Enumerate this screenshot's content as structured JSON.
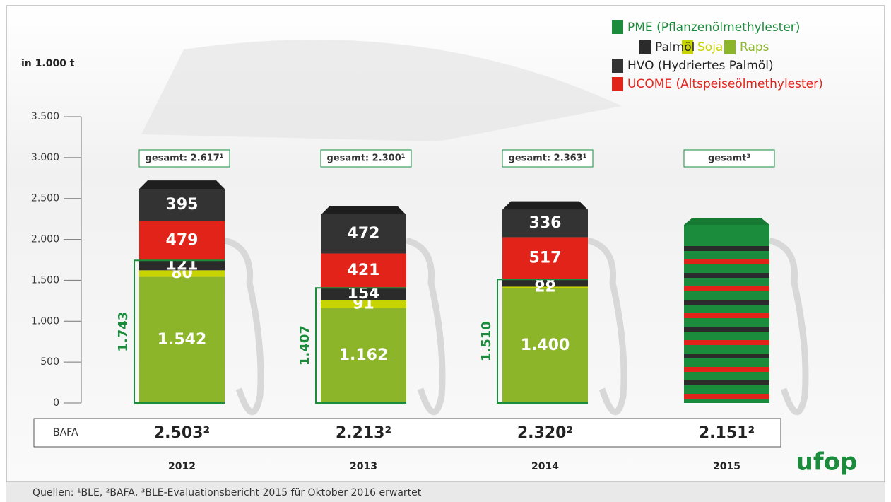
{
  "chart_data": {
    "type": "bar",
    "stacked": true,
    "y_label": "in 1.000 t",
    "categories": [
      "2012",
      "2013",
      "2014",
      "2015"
    ],
    "series": [
      {
        "name": "Raps",
        "color": "#8cb52a",
        "values": [
          1542,
          1162,
          1400,
          null
        ],
        "value_labels": [
          "1.542",
          "1.162",
          "1.400",
          null
        ]
      },
      {
        "name": "Soja",
        "color": "#c8d400",
        "values": [
          80,
          91,
          22,
          null
        ]
      },
      {
        "name": "Palmöl",
        "color": "#2b2b2b",
        "values": [
          121,
          154,
          88,
          null
        ]
      },
      {
        "name": "UCOME (Altspeiseölmethylester)",
        "color": "#e2231a",
        "values": [
          479,
          421,
          517,
          null
        ]
      },
      {
        "name": "HVO (Hydriertes Palmöl)",
        "color": "#333333",
        "values": [
          395,
          472,
          336,
          null
        ]
      }
    ],
    "legend_group": "PME (Pflanzenölmethylester)",
    "legend_group_color": "#1a8c3c",
    "ylim": [
      0,
      3500
    ],
    "yticks": [
      0,
      500,
      {
        "value": 1000,
        "label": "1.000"
      },
      {
        "value": 1500,
        "label": "1.500"
      },
      {
        "value": 2000,
        "label": "2.000"
      },
      {
        "value": 2500,
        "label": "2.500"
      },
      {
        "value": 3000,
        "label": "3.000"
      },
      {
        "value": 3500,
        "label": "3.500"
      }
    ],
    "totals": {
      "values": [
        2617,
        2300,
        2363,
        null
      ],
      "value_labels": [
        "gesamt: 2.617¹",
        "gesamt: 2.300¹",
        "gesamt: 2.363¹",
        "gesamt³"
      ]
    },
    "pme_totals": {
      "values": [
        1743,
        1407,
        1510,
        null
      ],
      "value_labels": [
        "1.743",
        "1.407",
        "1.510",
        null
      ]
    },
    "bafa": {
      "label": "BAFA",
      "values": [
        2503,
        2213,
        2320,
        2151
      ],
      "value_labels": [
        "2.503²",
        "2.213²",
        "2.320²",
        "2.151²"
      ]
    }
  },
  "source": "Quellen: ¹BLE, ²BAFA, ³BLE-Evaluationsbericht 2015 für Oktober 2016 erwartet",
  "logo": "ufop"
}
